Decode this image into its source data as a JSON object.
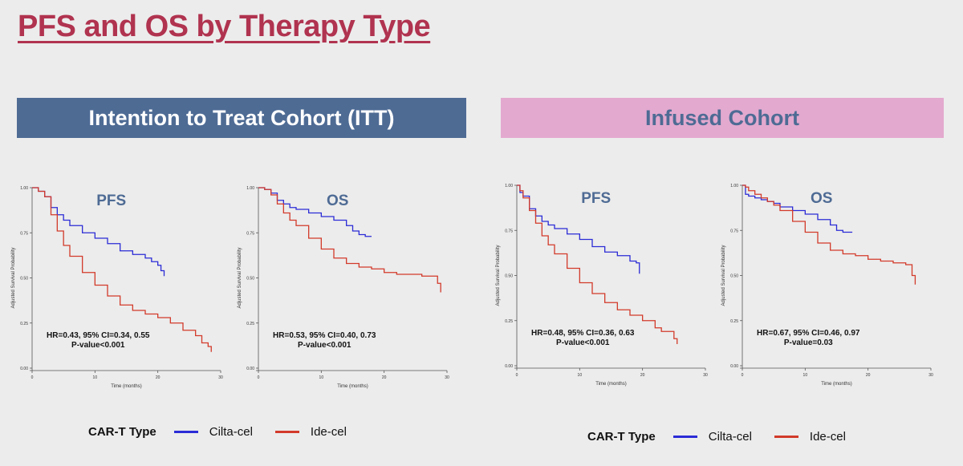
{
  "slide": {
    "title": "PFS and OS by Therapy Type",
    "banners": {
      "itt": "Intention to Treat Cohort (ITT)",
      "infused": "Infused Cohort"
    }
  },
  "colors": {
    "title": "#b0334f",
    "itt_banner": "#4e6b94",
    "infused_banner": "#e3a9cf",
    "cilta": "#2b2bd6",
    "ide": "#d23a2a",
    "panel_title": "#4e6b94"
  },
  "legend": {
    "title": "CAR-T Type",
    "items": [
      {
        "label": "Cilta-cel",
        "color": "#2b2bd6"
      },
      {
        "label": "Ide-cel",
        "color": "#d23a2a"
      }
    ]
  },
  "chart_data": [
    {
      "type": "line",
      "cohort": "Intention to Treat Cohort (ITT)",
      "panel_title": "PFS",
      "xlabel": "Time (months)",
      "ylabel": "Adjusted Survival Probability",
      "xlim": [
        0,
        30
      ],
      "ylim": [
        0,
        1
      ],
      "xticks": [
        "0",
        "10",
        "20",
        "30"
      ],
      "yticks": [
        "0.00",
        "0.25",
        "0.50",
        "0.75",
        "1.00"
      ],
      "annotation": [
        "HR=0.43, 95% CI=0.34, 0.55",
        "P-value<0.001"
      ],
      "series": [
        {
          "name": "Cilta-cel",
          "color": "#2b2bd6",
          "x": [
            0,
            1,
            2,
            3,
            4,
            5,
            6,
            8,
            10,
            12,
            14,
            16,
            18,
            19,
            20,
            20.5,
            21
          ],
          "y": [
            1.0,
            0.98,
            0.95,
            0.89,
            0.85,
            0.82,
            0.79,
            0.75,
            0.72,
            0.69,
            0.65,
            0.63,
            0.61,
            0.59,
            0.57,
            0.54,
            0.51
          ]
        },
        {
          "name": "Ide-cel",
          "color": "#d23a2a",
          "x": [
            0,
            1,
            2,
            3,
            4,
            5,
            6,
            8,
            10,
            12,
            14,
            16,
            18,
            20,
            22,
            24,
            26,
            27,
            28,
            28.5
          ],
          "y": [
            1.0,
            0.98,
            0.95,
            0.85,
            0.76,
            0.68,
            0.62,
            0.53,
            0.46,
            0.4,
            0.35,
            0.32,
            0.3,
            0.28,
            0.25,
            0.21,
            0.18,
            0.14,
            0.12,
            0.09
          ]
        }
      ]
    },
    {
      "type": "line",
      "cohort": "Intention to Treat Cohort (ITT)",
      "panel_title": "OS",
      "xlabel": "Time (months)",
      "ylabel": "Adjusted Survival Probability",
      "xlim": [
        0,
        30
      ],
      "ylim": [
        0,
        1
      ],
      "xticks": [
        "0",
        "10",
        "20",
        "30"
      ],
      "yticks": [
        "0.00",
        "0.25",
        "0.50",
        "0.75",
        "1.00"
      ],
      "annotation": [
        "HR=0.53, 95% CI=0.40, 0.73",
        "P-value<0.001"
      ],
      "series": [
        {
          "name": "Cilta-cel",
          "color": "#2b2bd6",
          "x": [
            0,
            1,
            2,
            3,
            4,
            5,
            6,
            8,
            10,
            12,
            14,
            15,
            16,
            17,
            18
          ],
          "y": [
            1.0,
            0.99,
            0.97,
            0.93,
            0.91,
            0.89,
            0.88,
            0.86,
            0.84,
            0.82,
            0.79,
            0.76,
            0.74,
            0.73,
            0.73
          ]
        },
        {
          "name": "Ide-cel",
          "color": "#d23a2a",
          "x": [
            0,
            1,
            2,
            3,
            4,
            5,
            6,
            8,
            10,
            12,
            14,
            16,
            18,
            20,
            22,
            24,
            26,
            28,
            28.5,
            29
          ],
          "y": [
            1.0,
            0.99,
            0.96,
            0.91,
            0.86,
            0.82,
            0.79,
            0.72,
            0.66,
            0.61,
            0.58,
            0.56,
            0.55,
            0.53,
            0.52,
            0.52,
            0.51,
            0.51,
            0.47,
            0.42
          ]
        }
      ]
    },
    {
      "type": "line",
      "cohort": "Infused Cohort",
      "panel_title": "PFS",
      "xlabel": "Time (months)",
      "ylabel": "Adjusted Survival Probability",
      "xlim": [
        0,
        30
      ],
      "ylim": [
        0,
        1
      ],
      "xticks": [
        "0",
        "10",
        "20",
        "30"
      ],
      "yticks": [
        "0.00",
        "0.25",
        "0.50",
        "0.75",
        "1.00"
      ],
      "annotation": [
        "HR=0.48, 95% CI=0.36, 0.63",
        "P-value<0.001"
      ],
      "series": [
        {
          "name": "Cilta-cel",
          "color": "#2b2bd6",
          "x": [
            0,
            0.5,
            1,
            2,
            3,
            4,
            5,
            6,
            8,
            10,
            12,
            14,
            16,
            18,
            19,
            19.5
          ],
          "y": [
            1.0,
            0.96,
            0.94,
            0.87,
            0.83,
            0.8,
            0.78,
            0.76,
            0.73,
            0.7,
            0.66,
            0.63,
            0.61,
            0.58,
            0.57,
            0.51
          ]
        },
        {
          "name": "Ide-cel",
          "color": "#d23a2a",
          "x": [
            0,
            0.5,
            1,
            2,
            3,
            4,
            5,
            6,
            8,
            10,
            12,
            14,
            16,
            18,
            20,
            22,
            23,
            24,
            25,
            25.5
          ],
          "y": [
            1.0,
            0.97,
            0.93,
            0.86,
            0.79,
            0.72,
            0.67,
            0.62,
            0.54,
            0.46,
            0.4,
            0.35,
            0.31,
            0.28,
            0.25,
            0.21,
            0.19,
            0.19,
            0.15,
            0.12
          ]
        }
      ]
    },
    {
      "type": "line",
      "cohort": "Infused Cohort",
      "panel_title": "OS",
      "xlabel": "Time (months)",
      "ylabel": "Adjusted Survival Probability",
      "xlim": [
        0,
        30
      ],
      "ylim": [
        0,
        1
      ],
      "xticks": [
        "0",
        "10",
        "20",
        "30"
      ],
      "yticks": [
        "0.00",
        "0.25",
        "0.50",
        "0.75",
        "1.00"
      ],
      "annotation": [
        "HR=0.67, 95% CI=0.46, 0.97",
        "P-value=0.03"
      ],
      "series": [
        {
          "name": "Cilta-cel",
          "color": "#2b2bd6",
          "x": [
            0,
            0.5,
            1,
            2,
            3,
            4,
            5,
            6,
            8,
            10,
            12,
            14,
            15,
            16,
            17.5
          ],
          "y": [
            1.0,
            0.95,
            0.94,
            0.93,
            0.92,
            0.91,
            0.9,
            0.88,
            0.86,
            0.84,
            0.81,
            0.78,
            0.75,
            0.74,
            0.74
          ]
        },
        {
          "name": "Ide-cel",
          "color": "#d23a2a",
          "x": [
            0,
            0.5,
            1,
            2,
            3,
            4,
            5,
            6,
            8,
            10,
            12,
            14,
            16,
            18,
            20,
            22,
            24,
            26,
            27,
            27.5
          ],
          "y": [
            1.0,
            0.99,
            0.97,
            0.95,
            0.93,
            0.91,
            0.89,
            0.86,
            0.8,
            0.74,
            0.68,
            0.64,
            0.62,
            0.61,
            0.59,
            0.58,
            0.57,
            0.56,
            0.5,
            0.45
          ]
        }
      ]
    }
  ]
}
